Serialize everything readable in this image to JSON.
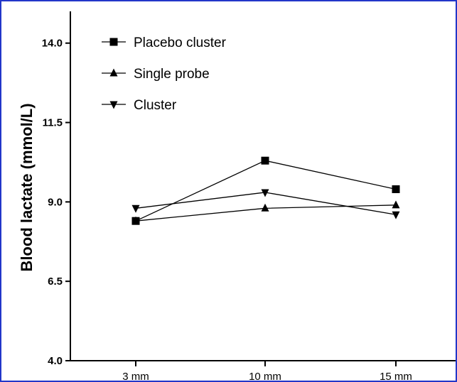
{
  "chart_data": {
    "type": "line",
    "title": "",
    "xlabel": "",
    "ylabel": "Blood lactate (mmol/L)",
    "categories": [
      "3 mm",
      "10 mm",
      "15 mm"
    ],
    "ylim": [
      4.0,
      15.0
    ],
    "yticks": [
      "4.0",
      "6.5",
      "9.0",
      "11.5",
      "14.0"
    ],
    "legend_position": "top-left",
    "series": [
      {
        "name": "Placebo cluster",
        "marker": "square",
        "values": [
          8.4,
          10.3,
          9.4
        ]
      },
      {
        "name": "Single probe",
        "marker": "triangle-up",
        "values": [
          8.4,
          8.8,
          8.9
        ]
      },
      {
        "name": "Cluster",
        "marker": "triangle-down",
        "values": [
          8.8,
          9.3,
          8.6
        ]
      }
    ],
    "grid": false
  }
}
